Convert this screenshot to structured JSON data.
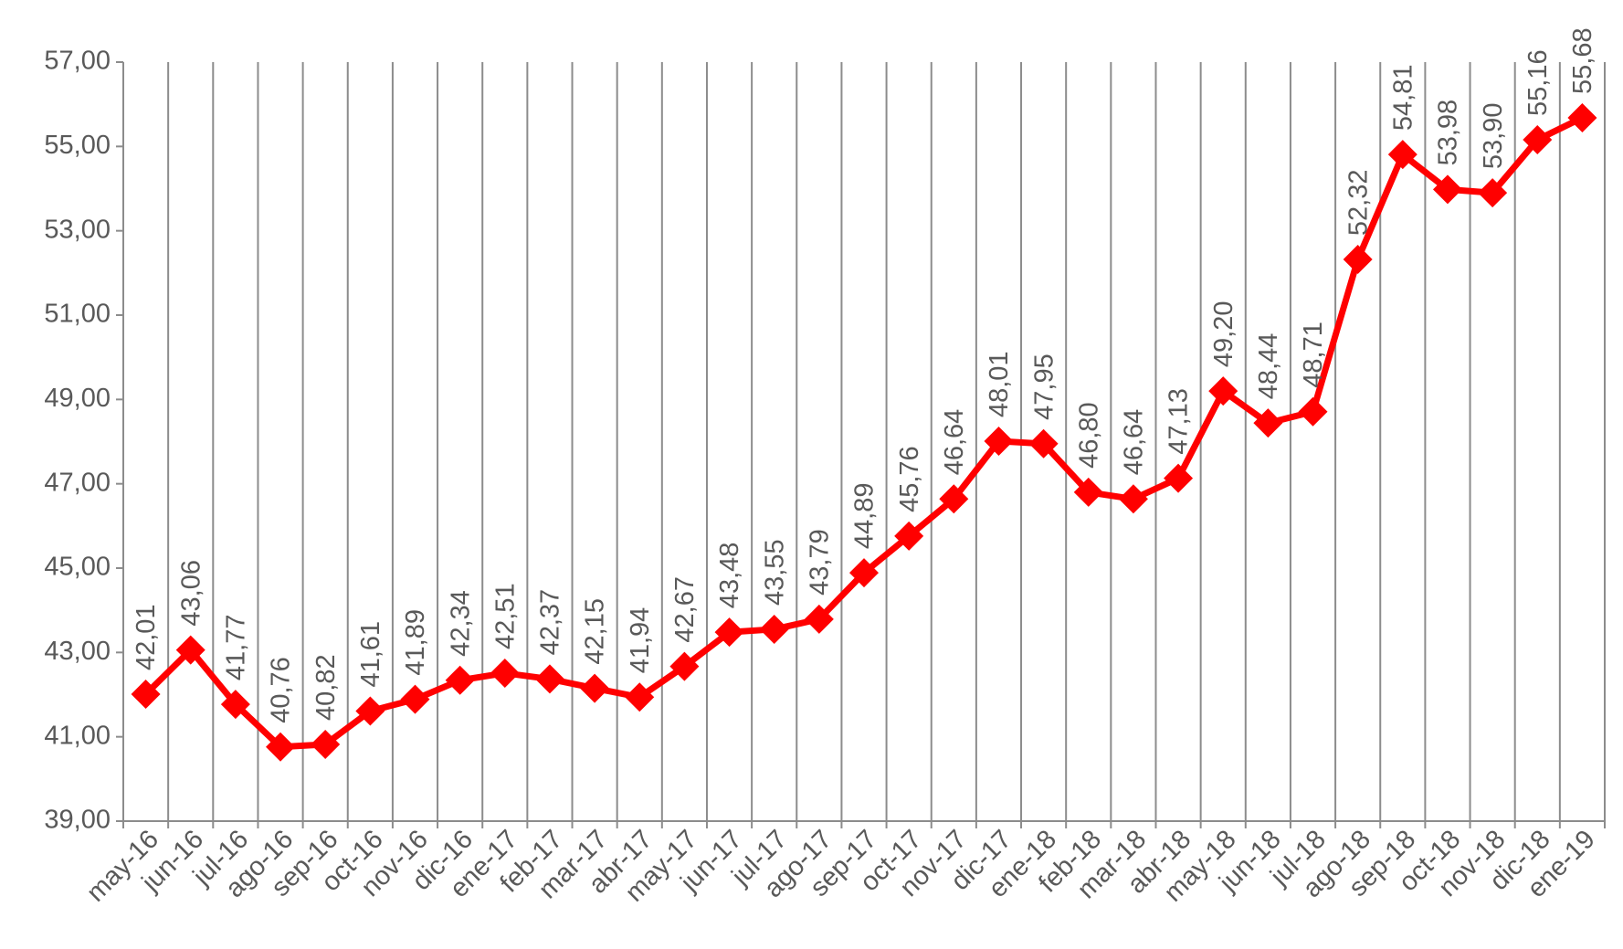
{
  "chart_data": {
    "type": "line",
    "categories": [
      "may-16",
      "jun-16",
      "jul-16",
      "ago-16",
      "sep-16",
      "oct-16",
      "nov-16",
      "dic-16",
      "ene-17",
      "feb-17",
      "mar-17",
      "abr-17",
      "may-17",
      "jun-17",
      "jul-17",
      "ago-17",
      "sep-17",
      "oct-17",
      "nov-17",
      "dic-17",
      "ene-18",
      "feb-18",
      "mar-18",
      "abr-18",
      "may-18",
      "jun-18",
      "jul-18",
      "ago-18",
      "sep-18",
      "oct-18",
      "nov-18",
      "dic-18",
      "ene-19"
    ],
    "series": [
      {
        "color": "#ff0000",
        "values": [
          42.01,
          43.06,
          41.77,
          40.76,
          40.82,
          41.61,
          41.89,
          42.34,
          42.51,
          42.37,
          42.15,
          41.94,
          42.67,
          43.48,
          43.55,
          43.79,
          44.89,
          45.76,
          46.64,
          48.01,
          47.95,
          46.8,
          46.64,
          47.13,
          49.2,
          48.44,
          48.71,
          52.32,
          54.81,
          53.98,
          53.9,
          55.16,
          55.68
        ],
        "value_labels": [
          "42,01",
          "43,06",
          "41,77",
          "40,76",
          "40,82",
          "41,61",
          "41,89",
          "42,34",
          "42,51",
          "42,37",
          "42,15",
          "41,94",
          "42,67",
          "43,48",
          "43,55",
          "43,79",
          "44,89",
          "45,76",
          "46,64",
          "48,01",
          "47,95",
          "46,80",
          "46,64",
          "47,13",
          "49,20",
          "48,44",
          "48,71",
          "52,32",
          "54,81",
          "53,98",
          "53,90",
          "55,16",
          "55,68"
        ]
      }
    ],
    "ylim": [
      39,
      57
    ],
    "yticks": [
      {
        "value": 39,
        "label": "39,00"
      },
      {
        "value": 41,
        "label": "41,00"
      },
      {
        "value": 43,
        "label": "43,00"
      },
      {
        "value": 45,
        "label": "45,00"
      },
      {
        "value": 47,
        "label": "47,00"
      },
      {
        "value": 49,
        "label": "49,00"
      },
      {
        "value": 51,
        "label": "51,00"
      },
      {
        "value": 53,
        "label": "53,00"
      },
      {
        "value": 55,
        "label": "55,00"
      },
      {
        "value": 57,
        "label": "57,00"
      }
    ]
  }
}
